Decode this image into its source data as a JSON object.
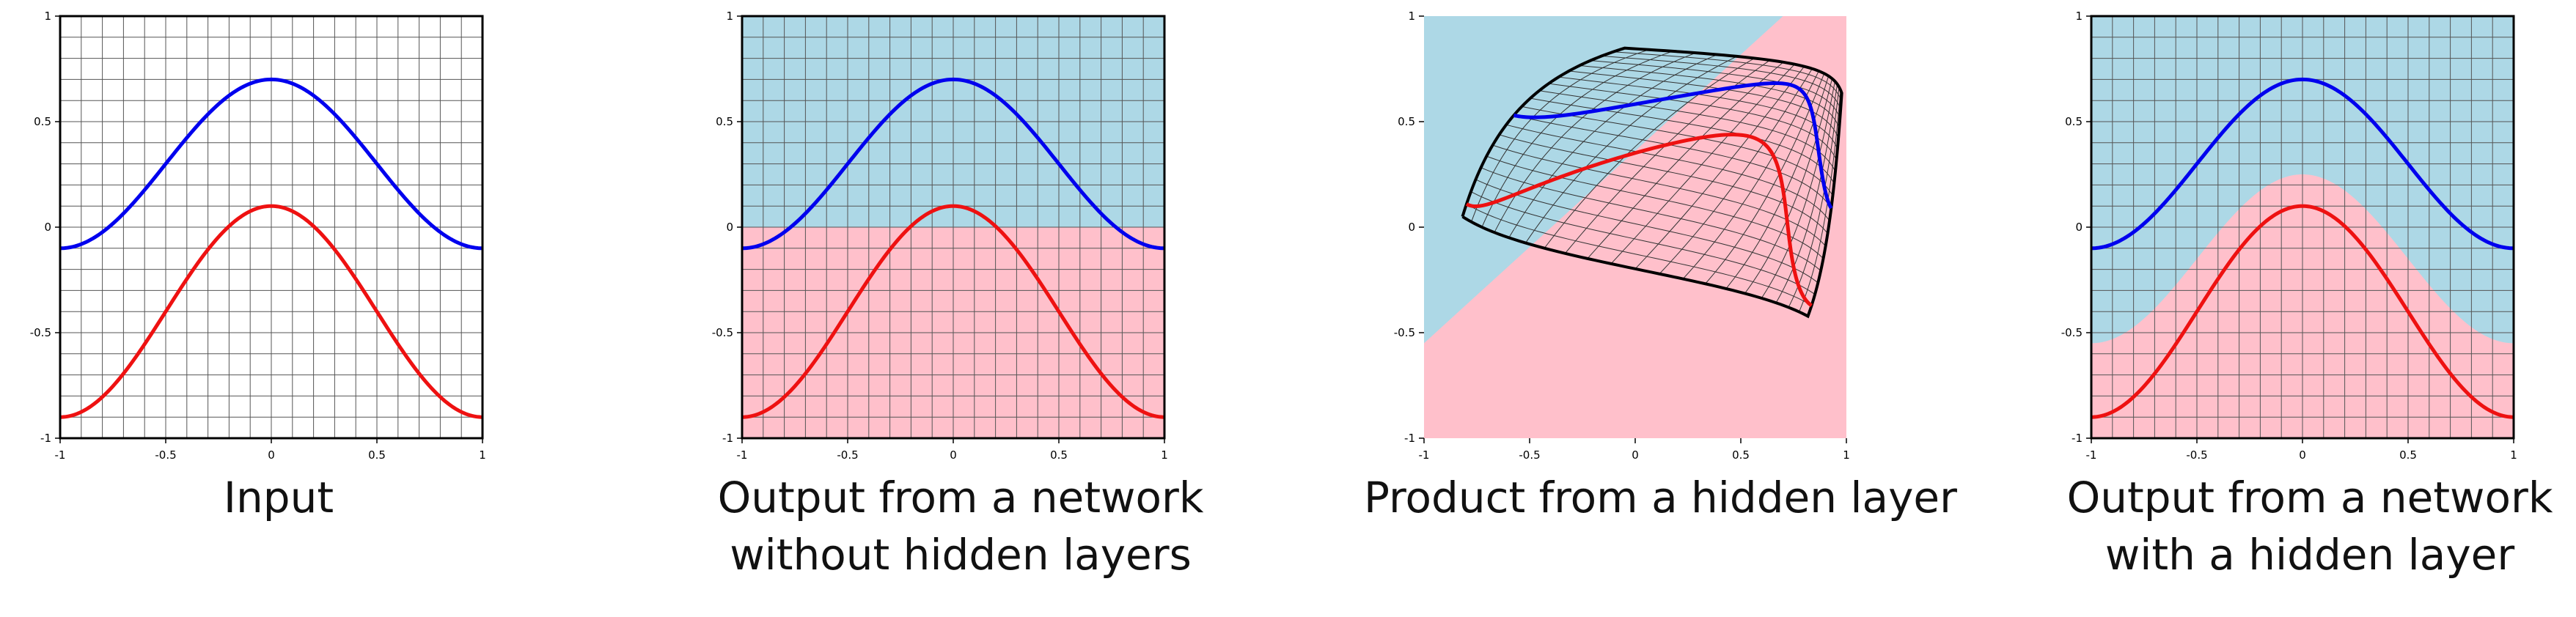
{
  "colors": {
    "upper_curve": "#0000ee",
    "lower_curve": "#ee1111",
    "upper_region": "#add8e6",
    "lower_region": "#ffc0cb",
    "grid": "#555555"
  },
  "ticks": {
    "x": [
      "-1",
      "-0.5",
      "0",
      "0.5",
      "1"
    ],
    "y": [
      "1",
      "0.5",
      "0",
      "-0.5",
      "-1"
    ]
  },
  "panels": [
    {
      "caption": [
        "Input"
      ]
    },
    {
      "caption": [
        "Output from a network",
        "without hidden layers"
      ]
    },
    {
      "caption": [
        "Product from a hidden layer"
      ]
    },
    {
      "caption": [
        "Output from a network",
        "with a hidden layer"
      ]
    }
  ]
}
